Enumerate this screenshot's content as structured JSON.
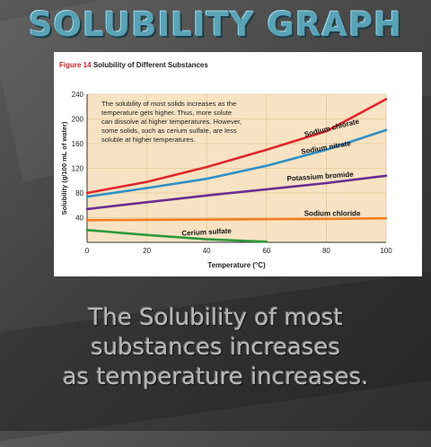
{
  "slide": {
    "title": "SOLUBILITY GRAPH",
    "body_lines": [
      "The Solubility of most",
      "substances increases",
      "as temperature increases."
    ]
  },
  "figure": {
    "number": "Figure 14",
    "caption": "Solubility of Different Substances",
    "note": [
      "The solubility of most solids increases as the",
      "temperature gets higher. Thus, more solute",
      "can dissolve at higher temperatures. However,",
      "some solids, such as cerium sulfate, are less",
      "soluble at higher temperatures."
    ]
  },
  "chart_data": {
    "type": "line",
    "xlabel": "Temperature (°C)",
    "ylabel": "Solubility (g/100 mL of water)",
    "xlim": [
      0,
      100
    ],
    "ylim": [
      0,
      240
    ],
    "xticks": [
      0,
      20,
      40,
      60,
      80,
      100
    ],
    "yticks": [
      40,
      80,
      120,
      160,
      200,
      240
    ],
    "grid": true,
    "series": [
      {
        "name": "Sodium chlorate",
        "color": "#e0262d",
        "x": [
          0,
          20,
          40,
          60,
          80,
          100
        ],
        "y": [
          80,
          98,
          122,
          150,
          180,
          232
        ]
      },
      {
        "name": "Sodium nitrate",
        "color": "#2f8fc6",
        "x": [
          0,
          20,
          40,
          60,
          80,
          100
        ],
        "y": [
          74,
          88,
          103,
          124,
          150,
          182
        ]
      },
      {
        "name": "Potassium bromide",
        "color": "#6a2d8f",
        "x": [
          0,
          20,
          40,
          60,
          80,
          100
        ],
        "y": [
          54,
          65,
          76,
          86,
          96,
          108
        ]
      },
      {
        "name": "Sodium chloride",
        "color": "#f07f23",
        "x": [
          0,
          20,
          40,
          60,
          80,
          100
        ],
        "y": [
          36,
          36.5,
          37,
          37.5,
          38,
          39
        ]
      },
      {
        "name": "Cerium sulfate",
        "color": "#2e9a3c",
        "x": [
          0,
          20,
          40,
          60
        ],
        "y": [
          20,
          12,
          5,
          1
        ]
      }
    ]
  }
}
